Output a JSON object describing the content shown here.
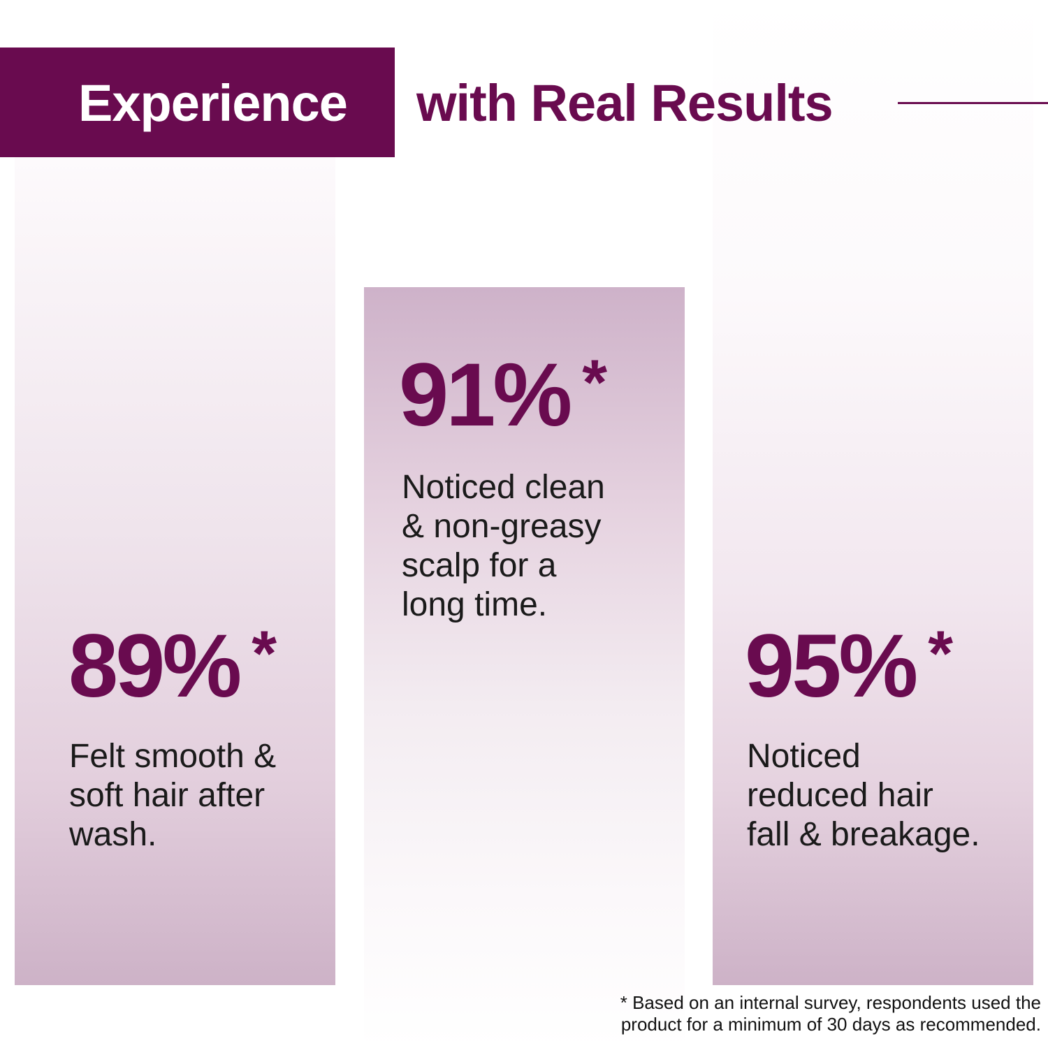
{
  "header": {
    "title_highlight": "Experience",
    "title_rest": "with Real Results"
  },
  "colors": {
    "brand": "#690b4f",
    "column_tint": "#cdb2c7",
    "text": "#1a1a1a"
  },
  "stats": [
    {
      "value": "89%",
      "marker": "*",
      "description": "Felt smooth &\nsoft hair after\nwash."
    },
    {
      "value": "91%",
      "marker": "*",
      "description": "Noticed clean\n& non-greasy\nscalp for a\nlong time."
    },
    {
      "value": "95%",
      "marker": "*",
      "description": "Noticed\nreduced hair\nfall & breakage."
    }
  ],
  "footnote": "* Based on an internal survey, respondents used the\nproduct for a minimum of 30 days as recommended."
}
